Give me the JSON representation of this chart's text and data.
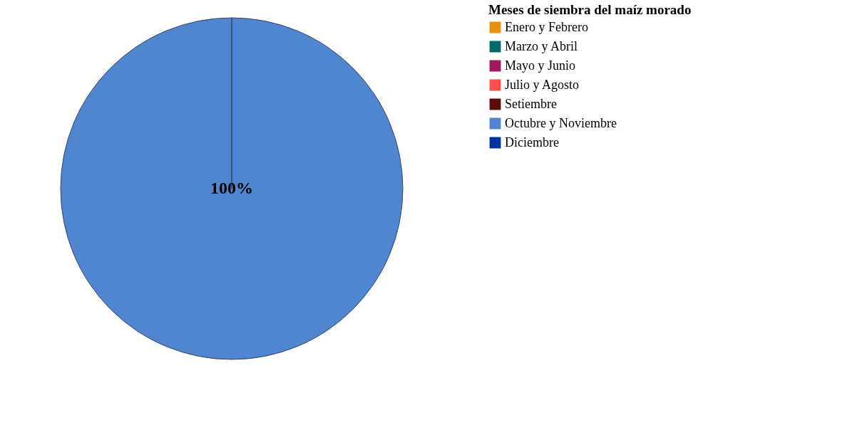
{
  "chart_data": {
    "type": "pie",
    "legend_title": "Meses de siembra del maíz morado",
    "categories": [
      "Enero y Febrero",
      "Marzo y Abril",
      "Mayo y Junio",
      "Julio y Agosto",
      "Setiembre",
      "Octubre y Noviembre",
      "Diciembre"
    ],
    "values": [
      0,
      0,
      0,
      0,
      0,
      100,
      0
    ],
    "colors": [
      "#e8900c",
      "#006b6b",
      "#a0195f",
      "#ff5050",
      "#5c0a0a",
      "#4f86cf",
      "#0033a0"
    ],
    "value_labels": [
      null,
      null,
      null,
      null,
      null,
      "100%",
      null
    ],
    "legend": "top right"
  }
}
